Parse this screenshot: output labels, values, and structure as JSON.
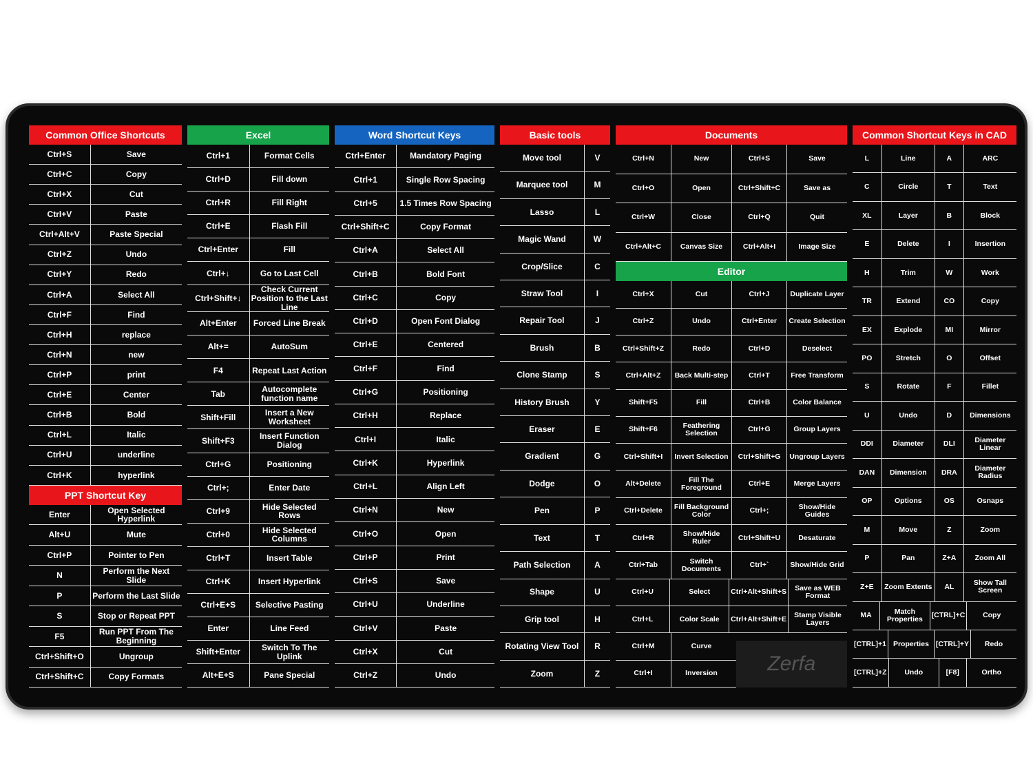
{
  "brand": "Zerfa",
  "columns": [
    {
      "sections": [
        {
          "title": "Common Office Shortcuts",
          "color": "#e8161b",
          "rows": [
            [
              "Ctrl+S",
              "Save"
            ],
            [
              "Ctrl+C",
              "Copy"
            ],
            [
              "Ctrl+X",
              "Cut"
            ],
            [
              "Ctrl+V",
              "Paste"
            ],
            [
              "Ctrl+Alt+V",
              "Paste Special"
            ],
            [
              "Ctrl+Z",
              "Undo"
            ],
            [
              "Ctrl+Y",
              "Redo"
            ],
            [
              "Ctrl+A",
              "Select All"
            ],
            [
              "Ctrl+F",
              "Find"
            ],
            [
              "Ctrl+H",
              "replace"
            ],
            [
              "Ctrl+N",
              "new"
            ],
            [
              "Ctrl+P",
              "print"
            ],
            [
              "Ctrl+E",
              "Center"
            ],
            [
              "Ctrl+B",
              "Bold"
            ],
            [
              "Ctrl+L",
              "Italic"
            ],
            [
              "Ctrl+U",
              "underline"
            ],
            [
              "Ctrl+K",
              "hyperlink"
            ]
          ]
        },
        {
          "title": "PPT Shortcut Key",
          "color": "#e8161b",
          "rows": [
            [
              "Enter",
              "Open Selected Hyperlink"
            ],
            [
              "Alt+U",
              "Mute"
            ],
            [
              "Ctrl+P",
              "Pointer to Pen"
            ],
            [
              "N",
              "Perform the Next Slide"
            ],
            [
              "P",
              "Perform the Last Slide"
            ],
            [
              "S",
              "Stop or Repeat PPT"
            ],
            [
              "F5",
              "Run PPT From The Beginning"
            ],
            [
              "Ctrl+Shift+O",
              "Ungroup"
            ],
            [
              "Ctrl+Shift+C",
              "Copy Formats"
            ]
          ]
        }
      ]
    },
    {
      "sections": [
        {
          "title": "Excel",
          "color": "#17a34a",
          "rows": [
            [
              "Ctrl+1",
              "Format Cells"
            ],
            [
              "Ctrl+D",
              "Fill down"
            ],
            [
              "Ctrl+R",
              "Fill Right"
            ],
            [
              "Ctrl+E",
              "Flash Fill"
            ],
            [
              "Ctrl+Enter",
              "Fill"
            ],
            [
              "Ctrl+↓",
              "Go to Last Cell"
            ],
            [
              "Ctrl+Shift+↓",
              "Check Current Position to the Last Line"
            ],
            [
              "Alt+Enter",
              "Forced Line Break"
            ],
            [
              "Alt+=",
              "AutoSum"
            ],
            [
              "F4",
              "Repeat Last Action"
            ],
            [
              "Tab",
              "Autocomplete function name"
            ],
            [
              "Shift+Fill",
              "Insert a New Worksheet"
            ],
            [
              "Shift+F3",
              "Insert Function Dialog"
            ],
            [
              "Ctrl+G",
              "Positioning"
            ],
            [
              "Ctrl+;",
              "Enter Date"
            ],
            [
              "Ctrl+9",
              "Hide Selected Rows"
            ],
            [
              "Ctrl+0",
              "Hide Selected Columns"
            ],
            [
              "Ctrl+T",
              "Insert Table"
            ],
            [
              "Ctrl+K",
              "Insert Hyperlink"
            ],
            [
              "Ctrl+E+S",
              "Selective Pasting"
            ],
            [
              "Enter",
              "Line Feed"
            ],
            [
              "Shift+Enter",
              "Switch To The Uplink"
            ],
            [
              "Alt+E+S",
              "Pane Special"
            ]
          ]
        }
      ]
    },
    {
      "sections": [
        {
          "title": "Word Shortcut Keys",
          "color": "#1565c0",
          "rows": [
            [
              "Ctrl+Enter",
              "Mandatory Paging"
            ],
            [
              "Ctrl+1",
              "Single Row Spacing"
            ],
            [
              "Ctrl+5",
              "1.5 Times Row Spacing"
            ],
            [
              "Ctrl+Shift+C",
              "Copy Format"
            ],
            [
              "Ctrl+A",
              "Select All"
            ],
            [
              "Ctrl+B",
              "Bold Font"
            ],
            [
              "Ctrl+C",
              "Copy"
            ],
            [
              "Ctrl+D",
              "Open Font Dialog"
            ],
            [
              "Ctrl+E",
              "Centered"
            ],
            [
              "Ctrl+F",
              "Find"
            ],
            [
              "Ctrl+G",
              "Positioning"
            ],
            [
              "Ctrl+H",
              "Replace"
            ],
            [
              "Ctrl+I",
              "Italic"
            ],
            [
              "Ctrl+K",
              "Hyperlink"
            ],
            [
              "Ctrl+L",
              "Align Left"
            ],
            [
              "Ctrl+N",
              "New"
            ],
            [
              "Ctrl+O",
              "Open"
            ],
            [
              "Ctrl+P",
              "Print"
            ],
            [
              "Ctrl+S",
              "Save"
            ],
            [
              "Ctrl+U",
              "Underline"
            ],
            [
              "Ctrl+V",
              "Paste"
            ],
            [
              "Ctrl+X",
              "Cut"
            ],
            [
              "Ctrl+Z",
              "Undo"
            ]
          ]
        }
      ]
    },
    {
      "sections": [
        {
          "title": "Basic tools",
          "color": "#e8161b",
          "rows": [
            [
              "Move tool",
              "V"
            ],
            [
              "Marquee tool",
              "M"
            ],
            [
              "Lasso",
              "L"
            ],
            [
              "Magic Wand",
              "W"
            ],
            [
              "Crop/Slice",
              "C"
            ],
            [
              "Straw Tool",
              "I"
            ],
            [
              "Repair Tool",
              "J"
            ],
            [
              "Brush",
              "B"
            ],
            [
              "Clone Stamp",
              "S"
            ],
            [
              "History Brush",
              "Y"
            ],
            [
              "Eraser",
              "E"
            ],
            [
              "Gradient",
              "G"
            ],
            [
              "Dodge",
              "O"
            ],
            [
              "Pen",
              "P"
            ],
            [
              "Text",
              "T"
            ],
            [
              "Path Selection",
              "A"
            ],
            [
              "Shape",
              "U"
            ],
            [
              "Grip tool",
              "H"
            ],
            [
              "Rotating View Tool",
              "R"
            ],
            [
              "Zoom",
              "Z"
            ]
          ]
        }
      ]
    },
    {
      "sections": [
        {
          "title": "Documents",
          "color": "#e8161b",
          "rows": [
            [
              "Ctrl+N",
              "New",
              "Ctrl+S",
              "Save"
            ],
            [
              "Ctrl+O",
              "Open",
              "Ctrl+Shift+C",
              "Save as"
            ],
            [
              "Ctrl+W",
              "Close",
              "Ctrl+Q",
              "Quit"
            ],
            [
              "Ctrl+Alt+C",
              "Canvas Size",
              "Ctrl+Alt+I",
              "Image Size"
            ]
          ]
        },
        {
          "title": "Editor",
          "color": "#17a34a",
          "rows": [
            [
              "Ctrl+X",
              "Cut",
              "Ctrl+J",
              "Duplicate Layer"
            ],
            [
              "Ctrl+Z",
              "Undo",
              "Ctrl+Enter",
              "Create Selection"
            ],
            [
              "Ctrl+Shift+Z",
              "Redo",
              "Ctrl+D",
              "Deselect"
            ],
            [
              "Ctrl+Alt+Z",
              "Back Multi-step",
              "Ctrl+T",
              "Free Transform"
            ],
            [
              "Shift+F5",
              "Fill",
              "Ctrl+B",
              "Color Balance"
            ],
            [
              "Shift+F6",
              "Feathering Selection",
              "Ctrl+G",
              "Group Layers"
            ],
            [
              "Ctrl+Shift+I",
              "Invert Selection",
              "Ctrl+Shift+G",
              "Ungroup Layers"
            ],
            [
              "Alt+Delete",
              "Fill The Foreground",
              "Ctrl+E",
              "Merge Layers"
            ],
            [
              "Ctrl+Delete",
              "Fill Background Color",
              "Ctrl+;",
              "Show/Hide Guides"
            ],
            [
              "Ctrl+R",
              "Show/Hide Ruler",
              "Ctrl+Shift+U",
              "Desaturate"
            ],
            [
              "Ctrl+Tab",
              "Switch Documents",
              "Ctrl+`",
              "Show/Hide Grid"
            ],
            [
              "Ctrl+U",
              "Select",
              "Ctrl+Alt+Shift+S",
              "Save as WEB Format"
            ],
            [
              "Ctrl+L",
              "Color Scale",
              "Ctrl+Alt+Shift+E",
              "Stamp Visible Layers"
            ],
            [
              "Ctrl+M",
              "Curve"
            ],
            [
              "Ctrl+I",
              "Inversion"
            ]
          ]
        }
      ]
    },
    {
      "sections": [
        {
          "title": "Common Shortcut Keys in CAD",
          "color": "#e8161b",
          "rows": [
            [
              "L",
              "Line",
              "A",
              "ARC"
            ],
            [
              "C",
              "Circle",
              "T",
              "Text"
            ],
            [
              "XL",
              "Layer",
              "B",
              "Block"
            ],
            [
              "E",
              "Delete",
              "I",
              "Insertion"
            ],
            [
              "H",
              "Trim",
              "W",
              "Work"
            ],
            [
              "TR",
              "Extend",
              "CO",
              "Copy"
            ],
            [
              "EX",
              "Explode",
              "MI",
              "Mirror"
            ],
            [
              "PO",
              "Stretch",
              "O",
              "Offset"
            ],
            [
              "S",
              "Rotate",
              "F",
              "Fillet"
            ],
            [
              "U",
              "Undo",
              "D",
              "Dimensions"
            ],
            [
              "DDI",
              "Diameter",
              "DLI",
              "Diameter Linear"
            ],
            [
              "DAN",
              "Dimension",
              "DRA",
              "Diameter Radius"
            ],
            [
              "OP",
              "Options",
              "OS",
              "Osnaps"
            ],
            [
              "M",
              "Move",
              "Z",
              "Zoom"
            ],
            [
              "P",
              "Pan",
              "Z+A",
              "Zoom All"
            ],
            [
              "Z+E",
              "Zoom Extents",
              "AL",
              "Show Tall Screen"
            ],
            [
              "MA",
              "Match Properties",
              "[CTRL]+C",
              "Copy"
            ],
            [
              "[CTRL]+1",
              "Properties",
              "[CTRL]+Y",
              "Redo"
            ],
            [
              "[CTRL]+Z",
              "Undo",
              "[F8]",
              "Ortho"
            ]
          ]
        }
      ]
    }
  ]
}
